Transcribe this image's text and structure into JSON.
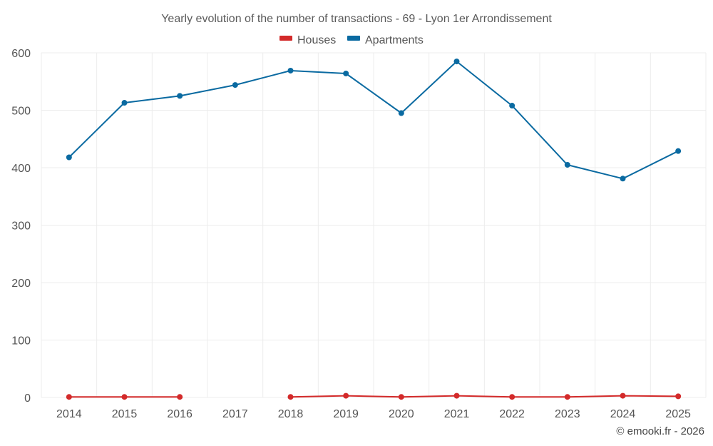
{
  "chart_data": {
    "type": "line",
    "title": "Yearly evolution of the number of transactions - 69 - Lyon 1er Arrondissement",
    "categories": [
      "2014",
      "2015",
      "2016",
      "2017",
      "2018",
      "2019",
      "2020",
      "2021",
      "2022",
      "2023",
      "2024",
      "2025"
    ],
    "series": [
      {
        "name": "Houses",
        "color": "#d32a2a",
        "values": [
          1,
          1,
          1,
          null,
          1,
          3,
          1,
          3,
          1,
          1,
          3,
          2
        ]
      },
      {
        "name": "Apartments",
        "color": "#0a6aa1",
        "values": [
          418,
          513,
          525,
          544,
          569,
          564,
          495,
          585,
          508,
          405,
          381,
          429
        ]
      }
    ],
    "ylim": [
      0,
      600
    ],
    "yticks": [
      0,
      100,
      200,
      300,
      400,
      500,
      600
    ],
    "xlabel": "",
    "ylabel": "",
    "grid": true,
    "legend_position": "top-center"
  },
  "credit": "© emooki.fr - 2026"
}
